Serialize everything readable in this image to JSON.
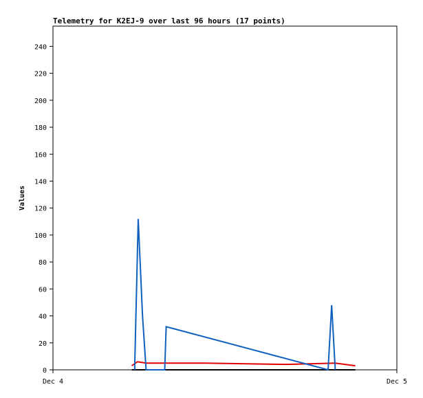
{
  "chart_data": {
    "type": "line",
    "title": "Telemetry for K2EJ-9 over last 96 hours (17 points)",
    "y_label": "Values",
    "xlim": [
      0,
      24
    ],
    "xticks": [
      {
        "value": 0,
        "label": "Dec 4"
      },
      {
        "value": 24,
        "label": "Dec 5"
      }
    ],
    "ylim": [
      0,
      255
    ],
    "yticks": [
      0,
      20,
      40,
      60,
      80,
      100,
      120,
      140,
      160,
      180,
      200,
      220,
      240
    ],
    "grid": false,
    "series": [
      {
        "color": "#000000",
        "x": [
          5.5,
          21.1
        ],
        "values": [
          0,
          0
        ]
      },
      {
        "color": "#e00000",
        "x": [
          5.5,
          5.9,
          6.5,
          10.6,
          16.3,
          19.7,
          21.1
        ],
        "values": [
          3,
          6,
          5,
          5,
          4,
          5,
          3
        ]
      },
      {
        "color": "#1060c0",
        "x": [
          5.7,
          5.95,
          6.25,
          6.5,
          7.8,
          7.9,
          19.2,
          19.45,
          19.7
        ],
        "values": [
          0,
          112,
          40,
          0,
          0,
          32,
          0,
          48,
          0
        ]
      }
    ]
  }
}
